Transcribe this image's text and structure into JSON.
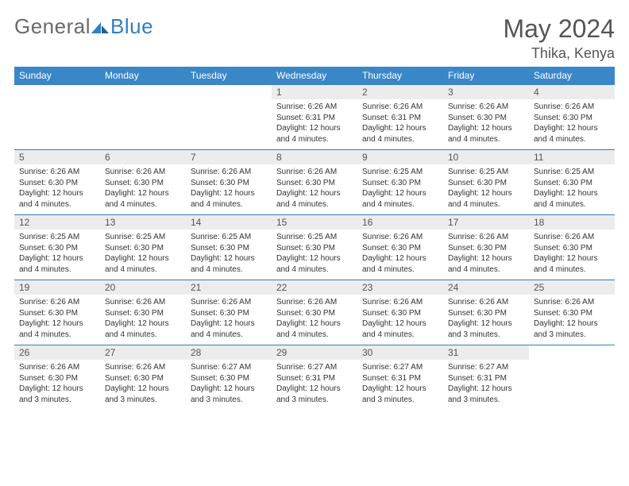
{
  "brand": {
    "part1": "General",
    "part2": "Blue"
  },
  "title": "May 2024",
  "location": "Thika, Kenya",
  "colors": {
    "header_bg": "#3a87c8",
    "header_text": "#ffffff",
    "daynum_bg": "#ececec",
    "daynum_text": "#555555",
    "body_text": "#333333",
    "rule": "#2f7fc2",
    "logo_gray": "#6a6a6a",
    "logo_blue": "#2f7fc2"
  },
  "fonts": {
    "month_title_size": 32,
    "location_size": 18,
    "weekday_size": 12,
    "daynum_size": 12,
    "body_size": 10
  },
  "weekdays": [
    "Sunday",
    "Monday",
    "Tuesday",
    "Wednesday",
    "Thursday",
    "Friday",
    "Saturday"
  ],
  "weeks": [
    [
      {
        "n": "",
        "l1": "",
        "l2": "",
        "l3": ""
      },
      {
        "n": "",
        "l1": "",
        "l2": "",
        "l3": ""
      },
      {
        "n": "",
        "l1": "",
        "l2": "",
        "l3": ""
      },
      {
        "n": "1",
        "l1": "Sunrise: 6:26 AM",
        "l2": "Sunset: 6:31 PM",
        "l3": "Daylight: 12 hours and 4 minutes."
      },
      {
        "n": "2",
        "l1": "Sunrise: 6:26 AM",
        "l2": "Sunset: 6:31 PM",
        "l3": "Daylight: 12 hours and 4 minutes."
      },
      {
        "n": "3",
        "l1": "Sunrise: 6:26 AM",
        "l2": "Sunset: 6:30 PM",
        "l3": "Daylight: 12 hours and 4 minutes."
      },
      {
        "n": "4",
        "l1": "Sunrise: 6:26 AM",
        "l2": "Sunset: 6:30 PM",
        "l3": "Daylight: 12 hours and 4 minutes."
      }
    ],
    [
      {
        "n": "5",
        "l1": "Sunrise: 6:26 AM",
        "l2": "Sunset: 6:30 PM",
        "l3": "Daylight: 12 hours and 4 minutes."
      },
      {
        "n": "6",
        "l1": "Sunrise: 6:26 AM",
        "l2": "Sunset: 6:30 PM",
        "l3": "Daylight: 12 hours and 4 minutes."
      },
      {
        "n": "7",
        "l1": "Sunrise: 6:26 AM",
        "l2": "Sunset: 6:30 PM",
        "l3": "Daylight: 12 hours and 4 minutes."
      },
      {
        "n": "8",
        "l1": "Sunrise: 6:26 AM",
        "l2": "Sunset: 6:30 PM",
        "l3": "Daylight: 12 hours and 4 minutes."
      },
      {
        "n": "9",
        "l1": "Sunrise: 6:25 AM",
        "l2": "Sunset: 6:30 PM",
        "l3": "Daylight: 12 hours and 4 minutes."
      },
      {
        "n": "10",
        "l1": "Sunrise: 6:25 AM",
        "l2": "Sunset: 6:30 PM",
        "l3": "Daylight: 12 hours and 4 minutes."
      },
      {
        "n": "11",
        "l1": "Sunrise: 6:25 AM",
        "l2": "Sunset: 6:30 PM",
        "l3": "Daylight: 12 hours and 4 minutes."
      }
    ],
    [
      {
        "n": "12",
        "l1": "Sunrise: 6:25 AM",
        "l2": "Sunset: 6:30 PM",
        "l3": "Daylight: 12 hours and 4 minutes."
      },
      {
        "n": "13",
        "l1": "Sunrise: 6:25 AM",
        "l2": "Sunset: 6:30 PM",
        "l3": "Daylight: 12 hours and 4 minutes."
      },
      {
        "n": "14",
        "l1": "Sunrise: 6:25 AM",
        "l2": "Sunset: 6:30 PM",
        "l3": "Daylight: 12 hours and 4 minutes."
      },
      {
        "n": "15",
        "l1": "Sunrise: 6:25 AM",
        "l2": "Sunset: 6:30 PM",
        "l3": "Daylight: 12 hours and 4 minutes."
      },
      {
        "n": "16",
        "l1": "Sunrise: 6:26 AM",
        "l2": "Sunset: 6:30 PM",
        "l3": "Daylight: 12 hours and 4 minutes."
      },
      {
        "n": "17",
        "l1": "Sunrise: 6:26 AM",
        "l2": "Sunset: 6:30 PM",
        "l3": "Daylight: 12 hours and 4 minutes."
      },
      {
        "n": "18",
        "l1": "Sunrise: 6:26 AM",
        "l2": "Sunset: 6:30 PM",
        "l3": "Daylight: 12 hours and 4 minutes."
      }
    ],
    [
      {
        "n": "19",
        "l1": "Sunrise: 6:26 AM",
        "l2": "Sunset: 6:30 PM",
        "l3": "Daylight: 12 hours and 4 minutes."
      },
      {
        "n": "20",
        "l1": "Sunrise: 6:26 AM",
        "l2": "Sunset: 6:30 PM",
        "l3": "Daylight: 12 hours and 4 minutes."
      },
      {
        "n": "21",
        "l1": "Sunrise: 6:26 AM",
        "l2": "Sunset: 6:30 PM",
        "l3": "Daylight: 12 hours and 4 minutes."
      },
      {
        "n": "22",
        "l1": "Sunrise: 6:26 AM",
        "l2": "Sunset: 6:30 PM",
        "l3": "Daylight: 12 hours and 4 minutes."
      },
      {
        "n": "23",
        "l1": "Sunrise: 6:26 AM",
        "l2": "Sunset: 6:30 PM",
        "l3": "Daylight: 12 hours and 4 minutes."
      },
      {
        "n": "24",
        "l1": "Sunrise: 6:26 AM",
        "l2": "Sunset: 6:30 PM",
        "l3": "Daylight: 12 hours and 3 minutes."
      },
      {
        "n": "25",
        "l1": "Sunrise: 6:26 AM",
        "l2": "Sunset: 6:30 PM",
        "l3": "Daylight: 12 hours and 3 minutes."
      }
    ],
    [
      {
        "n": "26",
        "l1": "Sunrise: 6:26 AM",
        "l2": "Sunset: 6:30 PM",
        "l3": "Daylight: 12 hours and 3 minutes."
      },
      {
        "n": "27",
        "l1": "Sunrise: 6:26 AM",
        "l2": "Sunset: 6:30 PM",
        "l3": "Daylight: 12 hours and 3 minutes."
      },
      {
        "n": "28",
        "l1": "Sunrise: 6:27 AM",
        "l2": "Sunset: 6:30 PM",
        "l3": "Daylight: 12 hours and 3 minutes."
      },
      {
        "n": "29",
        "l1": "Sunrise: 6:27 AM",
        "l2": "Sunset: 6:31 PM",
        "l3": "Daylight: 12 hours and 3 minutes."
      },
      {
        "n": "30",
        "l1": "Sunrise: 6:27 AM",
        "l2": "Sunset: 6:31 PM",
        "l3": "Daylight: 12 hours and 3 minutes."
      },
      {
        "n": "31",
        "l1": "Sunrise: 6:27 AM",
        "l2": "Sunset: 6:31 PM",
        "l3": "Daylight: 12 hours and 3 minutes."
      },
      {
        "n": "",
        "l1": "",
        "l2": "",
        "l3": ""
      }
    ]
  ]
}
